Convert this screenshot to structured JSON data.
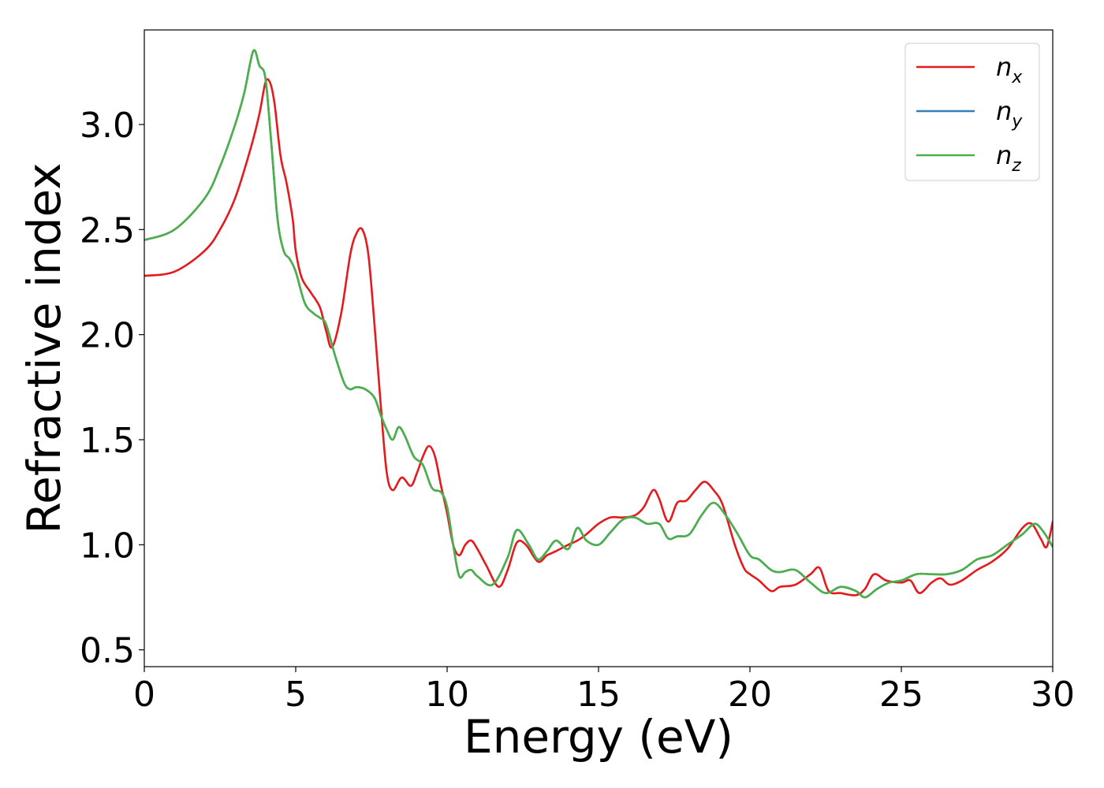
{
  "chart_data": {
    "type": "line",
    "xlabel": "Energy (eV)",
    "ylabel": "Refractive index",
    "xlim": [
      0,
      30
    ],
    "ylim": [
      0.42,
      3.45
    ],
    "xticks": [
      0,
      5,
      10,
      15,
      20,
      25,
      30
    ],
    "yticks": [
      0.5,
      1.0,
      1.5,
      2.0,
      2.5,
      3.0
    ],
    "xtick_labels": [
      "0",
      "5",
      "10",
      "15",
      "20",
      "25",
      "30"
    ],
    "ytick_labels": [
      "0.5",
      "1.0",
      "1.5",
      "2.0",
      "2.5",
      "3.0"
    ],
    "grid": false,
    "legend_position": "top-right",
    "series": [
      {
        "name": "n_x",
        "label_base": "n",
        "label_sub": "x",
        "color": "#e41a1c",
        "x": [
          0,
          1,
          2,
          2.5,
          3,
          3.5,
          3.8,
          4.0,
          4.15,
          4.3,
          4.5,
          4.7,
          4.9,
          5.0,
          5.2,
          5.5,
          5.8,
          6.0,
          6.2,
          6.5,
          6.8,
          7.0,
          7.2,
          7.4,
          7.6,
          7.8,
          8.0,
          8.2,
          8.5,
          8.8,
          9.0,
          9.2,
          9.4,
          9.6,
          9.8,
          10.0,
          10.2,
          10.4,
          10.6,
          10.8,
          11.0,
          11.3,
          11.7,
          12.0,
          12.3,
          12.6,
          13.0,
          13.3,
          13.6,
          14.0,
          14.3,
          14.6,
          15.0,
          15.4,
          15.8,
          16.2,
          16.5,
          16.8,
          17.0,
          17.3,
          17.6,
          17.9,
          18.2,
          18.5,
          18.8,
          19.1,
          19.5,
          19.8,
          20.0,
          20.3,
          20.7,
          21.0,
          21.5,
          22.0,
          22.3,
          22.6,
          23.0,
          23.5,
          23.8,
          24.1,
          24.5,
          25.0,
          25.3,
          25.6,
          26.0,
          26.3,
          26.6,
          27.0,
          27.5,
          28.0,
          28.5,
          29.0,
          29.3,
          29.6,
          29.8,
          30.0
        ],
        "y": [
          2.28,
          2.3,
          2.4,
          2.5,
          2.65,
          2.88,
          3.05,
          3.2,
          3.2,
          3.1,
          2.85,
          2.72,
          2.55,
          2.4,
          2.27,
          2.2,
          2.13,
          2.02,
          1.94,
          2.1,
          2.38,
          2.48,
          2.5,
          2.38,
          2.05,
          1.68,
          1.35,
          1.26,
          1.32,
          1.28,
          1.34,
          1.42,
          1.47,
          1.42,
          1.28,
          1.15,
          1.0,
          0.95,
          1.0,
          1.02,
          0.98,
          0.9,
          0.8,
          0.88,
          1.01,
          1.0,
          0.92,
          0.95,
          0.97,
          1.0,
          1.02,
          1.05,
          1.1,
          1.13,
          1.13,
          1.14,
          1.18,
          1.26,
          1.22,
          1.11,
          1.2,
          1.21,
          1.26,
          1.3,
          1.26,
          1.19,
          1.0,
          0.89,
          0.86,
          0.83,
          0.78,
          0.8,
          0.81,
          0.86,
          0.89,
          0.78,
          0.77,
          0.76,
          0.79,
          0.86,
          0.83,
          0.82,
          0.83,
          0.77,
          0.82,
          0.84,
          0.81,
          0.83,
          0.88,
          0.92,
          0.98,
          1.08,
          1.1,
          1.03,
          0.99,
          1.11
        ]
      },
      {
        "name": "n_y",
        "label_base": "n",
        "label_sub": "y",
        "color": "#377eb8",
        "x": [
          0,
          1,
          2,
          2.5,
          3,
          3.3,
          3.6,
          3.8,
          4.0,
          4.2,
          4.4,
          4.6,
          4.8,
          5.0,
          5.3,
          5.6,
          5.8,
          6.0,
          6.3,
          6.6,
          6.8,
          7.0,
          7.3,
          7.6,
          7.8,
          8.0,
          8.2,
          8.4,
          8.6,
          8.9,
          9.2,
          9.5,
          9.8,
          10.0,
          10.2,
          10.4,
          10.6,
          10.8,
          11.0,
          11.5,
          12.0,
          12.3,
          12.7,
          13.0,
          13.3,
          13.6,
          14.0,
          14.3,
          14.6,
          15.0,
          15.4,
          15.8,
          16.2,
          16.6,
          17.0,
          17.3,
          17.6,
          18.0,
          18.4,
          18.8,
          19.2,
          19.6,
          20.0,
          20.3,
          20.7,
          21.0,
          21.5,
          22.0,
          22.5,
          23.0,
          23.5,
          23.8,
          24.2,
          24.6,
          25.0,
          25.5,
          26.0,
          26.5,
          27.0,
          27.5,
          28.0,
          28.5,
          29.0,
          29.4,
          29.7,
          30.0
        ],
        "y": [
          2.45,
          2.5,
          2.65,
          2.8,
          3.0,
          3.15,
          3.35,
          3.28,
          3.22,
          2.9,
          2.55,
          2.4,
          2.36,
          2.3,
          2.15,
          2.1,
          2.08,
          2.05,
          1.9,
          1.77,
          1.74,
          1.75,
          1.74,
          1.7,
          1.62,
          1.55,
          1.5,
          1.56,
          1.52,
          1.42,
          1.38,
          1.27,
          1.25,
          1.18,
          1.0,
          0.85,
          0.87,
          0.88,
          0.85,
          0.81,
          0.94,
          1.07,
          1.0,
          0.93,
          0.97,
          1.02,
          0.98,
          1.08,
          1.02,
          1.0,
          1.06,
          1.12,
          1.13,
          1.1,
          1.1,
          1.03,
          1.04,
          1.05,
          1.14,
          1.2,
          1.14,
          1.05,
          0.95,
          0.93,
          0.88,
          0.87,
          0.88,
          0.82,
          0.77,
          0.8,
          0.78,
          0.75,
          0.79,
          0.82,
          0.83,
          0.86,
          0.86,
          0.86,
          0.88,
          0.93,
          0.95,
          1.0,
          1.05,
          1.1,
          1.06,
          0.99
        ]
      },
      {
        "name": "n_z",
        "label_base": "n",
        "label_sub": "z",
        "color": "#4daf4a",
        "x": [
          0,
          1,
          2,
          2.5,
          3,
          3.3,
          3.6,
          3.8,
          4.0,
          4.2,
          4.4,
          4.6,
          4.8,
          5.0,
          5.3,
          5.6,
          5.8,
          6.0,
          6.3,
          6.6,
          6.8,
          7.0,
          7.3,
          7.6,
          7.8,
          8.0,
          8.2,
          8.4,
          8.6,
          8.9,
          9.2,
          9.5,
          9.8,
          10.0,
          10.2,
          10.4,
          10.6,
          10.8,
          11.0,
          11.5,
          12.0,
          12.3,
          12.7,
          13.0,
          13.3,
          13.6,
          14.0,
          14.3,
          14.6,
          15.0,
          15.4,
          15.8,
          16.2,
          16.6,
          17.0,
          17.3,
          17.6,
          18.0,
          18.4,
          18.8,
          19.2,
          19.6,
          20.0,
          20.3,
          20.7,
          21.0,
          21.5,
          22.0,
          22.5,
          23.0,
          23.5,
          23.8,
          24.2,
          24.6,
          25.0,
          25.5,
          26.0,
          26.5,
          27.0,
          27.5,
          28.0,
          28.5,
          29.0,
          29.4,
          29.7,
          30.0
        ],
        "y": [
          2.45,
          2.5,
          2.65,
          2.8,
          3.0,
          3.15,
          3.35,
          3.28,
          3.22,
          2.9,
          2.55,
          2.4,
          2.36,
          2.3,
          2.15,
          2.1,
          2.08,
          2.05,
          1.9,
          1.77,
          1.74,
          1.75,
          1.74,
          1.7,
          1.62,
          1.55,
          1.5,
          1.56,
          1.52,
          1.42,
          1.38,
          1.27,
          1.25,
          1.18,
          1.0,
          0.85,
          0.87,
          0.88,
          0.85,
          0.81,
          0.94,
          1.07,
          1.0,
          0.93,
          0.97,
          1.02,
          0.98,
          1.08,
          1.02,
          1.0,
          1.06,
          1.12,
          1.13,
          1.1,
          1.1,
          1.03,
          1.04,
          1.05,
          1.14,
          1.2,
          1.14,
          1.05,
          0.95,
          0.93,
          0.88,
          0.87,
          0.88,
          0.82,
          0.77,
          0.8,
          0.78,
          0.75,
          0.79,
          0.82,
          0.83,
          0.86,
          0.86,
          0.86,
          0.88,
          0.93,
          0.95,
          1.0,
          1.05,
          1.1,
          1.06,
          0.99
        ]
      }
    ]
  }
}
